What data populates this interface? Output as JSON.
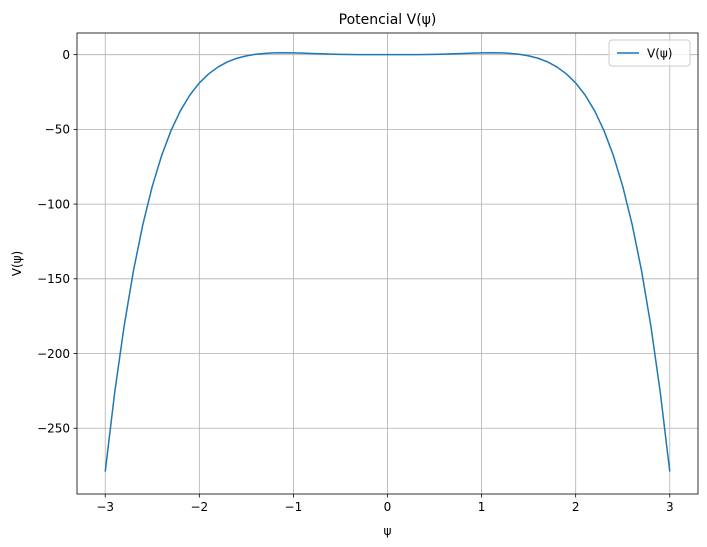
{
  "chart_data": {
    "type": "line",
    "title": "Potencial V(ψ)",
    "xlabel": "ψ",
    "ylabel": "V(ψ)",
    "xlim": [
      -3.3,
      3.3
    ],
    "ylim": [
      -294,
      14.5
    ],
    "xticks": [
      -3,
      -2,
      -1,
      0,
      1,
      2,
      3
    ],
    "xtick_labels": [
      "−3",
      "−2",
      "−1",
      "0",
      "1",
      "2",
      "3"
    ],
    "yticks": [
      0,
      -50,
      -100,
      -150,
      -200,
      -250
    ],
    "ytick_labels": [
      "0",
      "−50",
      "−100",
      "−150",
      "−200",
      "−250"
    ],
    "grid": true,
    "legend": {
      "position": "top-right",
      "entries": [
        "V(ψ)"
      ]
    },
    "series": [
      {
        "name": "V(ψ)",
        "color": "#1f77b4",
        "x": [
          -3.0,
          -2.9,
          -2.8,
          -2.7,
          -2.6,
          -2.5,
          -2.4,
          -2.3,
          -2.2,
          -2.1,
          -2.0,
          -1.9,
          -1.8,
          -1.7,
          -1.6,
          -1.5,
          -1.4,
          -1.3,
          -1.2,
          -1.1,
          -1.0,
          -0.9,
          -0.8,
          -0.7,
          -0.6,
          -0.5,
          -0.4,
          -0.3,
          -0.2,
          -0.1,
          0.0,
          0.1,
          0.2,
          0.3,
          0.4,
          0.5,
          0.6,
          0.7,
          0.8,
          0.9,
          1.0,
          1.1,
          1.2,
          1.3,
          1.4,
          1.5,
          1.6,
          1.7,
          1.8,
          1.9,
          2.0,
          2.1,
          2.2,
          2.3,
          2.4,
          2.5,
          2.6,
          2.7,
          2.8,
          2.9,
          3.0
        ],
        "y": [
          -279.0,
          -226.4,
          -181.9,
          -144.6,
          -113.6,
          -88.1,
          -67.4,
          -50.7,
          -37.4,
          -27.0,
          -18.9,
          -12.8,
          -8.2,
          -4.8,
          -2.4,
          -0.8,
          0.3,
          0.9,
          1.2,
          1.3,
          1.2,
          1.0,
          0.8,
          0.6,
          0.4,
          0.2,
          0.1,
          0.0,
          0.0,
          0.0,
          0.0,
          0.0,
          0.0,
          0.0,
          0.1,
          0.2,
          0.4,
          0.6,
          0.8,
          1.0,
          1.2,
          1.3,
          1.2,
          0.9,
          0.3,
          -0.8,
          -2.4,
          -4.8,
          -8.2,
          -12.8,
          -18.9,
          -27.0,
          -37.4,
          -50.7,
          -67.4,
          -88.1,
          -113.6,
          -144.6,
          -181.9,
          -226.4,
          -279.0
        ]
      }
    ]
  }
}
